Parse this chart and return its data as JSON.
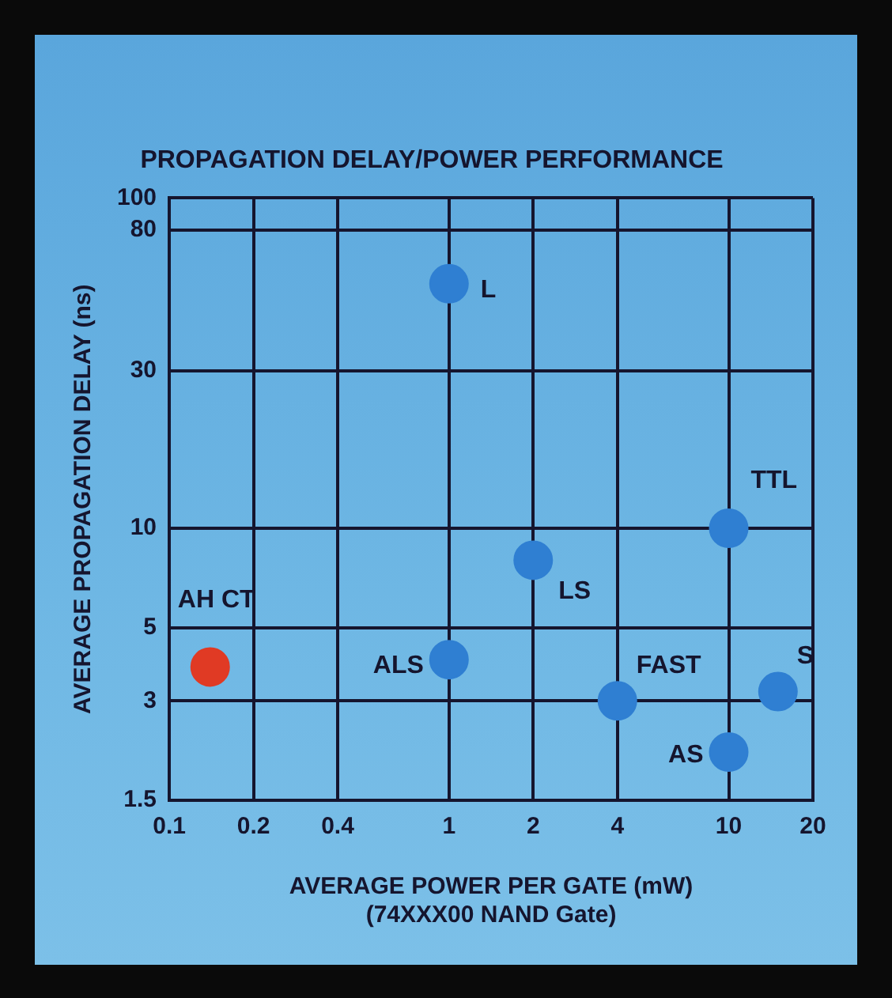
{
  "chart_data": {
    "type": "scatter",
    "title": "PROPAGATION DELAY/POWER PERFORMANCE",
    "xlabel": "AVERAGE POWER PER GATE (mW)\n(74XXX00 NAND Gate)",
    "ylabel": "AVERAGE PROPAGATION DELAY (ns)",
    "series": [
      {
        "name": "AH CT",
        "color": "#e03a24",
        "x": [
          0.14
        ],
        "values": [
          3.8
        ]
      },
      {
        "name": "L",
        "color": "#2f7fd2",
        "x": [
          1
        ],
        "values": [
          55
        ]
      },
      {
        "name": "ALS",
        "color": "#2f7fd2",
        "x": [
          1
        ],
        "values": [
          4
        ]
      },
      {
        "name": "LS",
        "color": "#2f7fd2",
        "x": [
          2
        ],
        "values": [
          8
        ]
      },
      {
        "name": "FAST",
        "color": "#2f7fd2",
        "x": [
          4
        ],
        "values": [
          3
        ]
      },
      {
        "name": "TTL",
        "color": "#2f7fd2",
        "x": [
          10
        ],
        "values": [
          10
        ]
      },
      {
        "name": "AS",
        "color": "#2f7fd2",
        "x": [
          10
        ],
        "values": [
          2.1
        ]
      },
      {
        "name": "S",
        "color": "#2f7fd2",
        "x": [
          15
        ],
        "values": [
          3.2
        ]
      }
    ],
    "xlim": [
      0.1,
      20
    ],
    "xticks": [
      0.1,
      0.2,
      0.4,
      1,
      2,
      4,
      10,
      20
    ],
    "ylim": [
      1.5,
      100
    ],
    "yticks": [
      1.5,
      3,
      5,
      10,
      30,
      80,
      100
    ],
    "log": "xy",
    "grid": true,
    "legend": false,
    "marker": "circle"
  }
}
